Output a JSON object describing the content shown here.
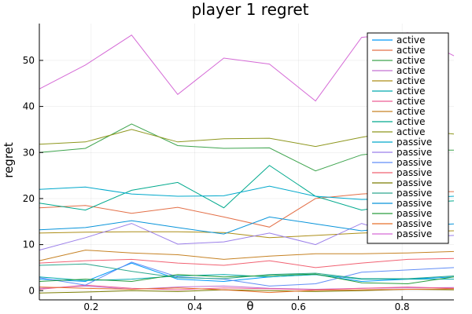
{
  "chart_data": {
    "type": "line",
    "title": "player 1 regret",
    "xlabel": "θ",
    "ylabel": "regret",
    "xlim": [
      0.1,
      0.9
    ],
    "ylim": [
      -2,
      58
    ],
    "xticks": [
      0.2,
      0.4,
      0.6,
      0.8
    ],
    "xtick_labels": [
      "0.2",
      "0.4",
      "0.6",
      "0.8"
    ],
    "yticks": [
      0,
      10,
      20,
      30,
      40,
      50
    ],
    "ytick_labels": [
      "0",
      "10",
      "20",
      "30",
      "40",
      "50"
    ],
    "grid": true,
    "legend_position": "top-right",
    "x": [
      0.1,
      0.189,
      0.278,
      0.367,
      0.456,
      0.544,
      0.633,
      0.722,
      0.811,
      0.9
    ],
    "series": [
      {
        "name": "active",
        "color": "#009AFA",
        "values": [
          2.5,
          2.0,
          6.0,
          2.5,
          2.0,
          3.0,
          3.5,
          2.0,
          2.5,
          3.0
        ]
      },
      {
        "name": "active",
        "color": "#E36F47",
        "values": [
          18.0,
          18.5,
          16.8,
          18.1,
          16.0,
          13.8,
          20.0,
          21.0,
          21.5,
          21.5
        ]
      },
      {
        "name": "active",
        "color": "#3EA44E",
        "values": [
          30.0,
          30.9,
          36.2,
          31.5,
          30.9,
          31.0,
          26.0,
          29.5,
          30.5,
          30.5
        ]
      },
      {
        "name": "active",
        "color": "#C371D2",
        "values": [
          0.5,
          1.0,
          0.3,
          0.8,
          1.0,
          0.5,
          0.3,
          0.5,
          0.6,
          0.7
        ]
      },
      {
        "name": "active",
        "color": "#AC8E18",
        "values": [
          12.5,
          12.7,
          12.8,
          12.8,
          12.6,
          11.5,
          12.0,
          12.5,
          12.8,
          13.0
        ]
      },
      {
        "name": "active",
        "color": "#00A9AD",
        "values": [
          3.0,
          2.2,
          2.5,
          3.2,
          3.5,
          3.0,
          3.5,
          2.5,
          2.5,
          2.5
        ]
      },
      {
        "name": "active",
        "color": "#ED5E93",
        "values": [
          0.3,
          1.2,
          0.5,
          0.2,
          0.6,
          0.4,
          0.2,
          0.5,
          0.8,
          0.5
        ]
      },
      {
        "name": "active",
        "color": "#C68224",
        "values": [
          6.5,
          8.8,
          8.2,
          7.8,
          6.8,
          7.5,
          8.0,
          8.0,
          8.2,
          8.5
        ]
      },
      {
        "name": "active",
        "color": "#00A98D",
        "values": [
          19.0,
          17.5,
          21.8,
          23.5,
          18.0,
          27.2,
          20.5,
          17.5,
          19.0,
          19.5
        ]
      },
      {
        "name": "active",
        "color": "#8E971E",
        "values": [
          31.8,
          32.3,
          35.0,
          32.3,
          33.0,
          33.1,
          31.3,
          33.3,
          35.0,
          34.0
        ]
      },
      {
        "name": "passive",
        "color": "#00A8CB",
        "values": [
          22.0,
          22.5,
          21.0,
          20.5,
          20.6,
          22.7,
          20.5,
          19.8,
          20.0,
          20.5
        ]
      },
      {
        "name": "passive",
        "color": "#9B7FE9",
        "values": [
          8.8,
          11.5,
          14.6,
          10.1,
          10.6,
          12.5,
          10.0,
          14.6,
          11.5,
          12.0
        ]
      },
      {
        "name": "passive",
        "color": "#618DF6",
        "values": [
          2.8,
          1.2,
          6.2,
          3.0,
          2.5,
          1.0,
          1.5,
          4.0,
          4.5,
          5.0
        ]
      },
      {
        "name": "passive",
        "color": "#F16172",
        "values": [
          6.0,
          6.5,
          6.8,
          6.0,
          5.5,
          6.5,
          5.0,
          6.0,
          6.8,
          7.0
        ]
      },
      {
        "name": "passive",
        "color": "#7A7C00",
        "values": [
          -0.5,
          -0.3,
          0.0,
          -0.2,
          0.2,
          0.0,
          -0.2,
          0.0,
          0.3,
          0.2
        ]
      },
      {
        "name": "passive",
        "color": "#2EA88F",
        "values": [
          5.5,
          5.8,
          4.2,
          2.8,
          2.6,
          3.5,
          3.8,
          2.6,
          2.6,
          3.2
        ]
      },
      {
        "name": "passive",
        "color": "#0894DA",
        "values": [
          13.2,
          13.7,
          15.2,
          13.7,
          12.3,
          16.0,
          14.5,
          13.0,
          14.0,
          14.5
        ]
      },
      {
        "name": "passive",
        "color": "#2B9E3D",
        "values": [
          2.0,
          2.5,
          2.0,
          3.5,
          3.0,
          3.3,
          3.6,
          1.7,
          1.5,
          3.0
        ]
      },
      {
        "name": "passive",
        "color": "#E8702A",
        "values": [
          0.8,
          0.5,
          0.3,
          0.6,
          0.2,
          -0.4,
          0.1,
          0.2,
          0.3,
          0.4
        ]
      },
      {
        "name": "passive",
        "color": "#D56AD6",
        "values": [
          43.8,
          49.0,
          55.5,
          42.6,
          50.5,
          49.2,
          41.2,
          55.0,
          56.0,
          51.0
        ]
      }
    ]
  }
}
